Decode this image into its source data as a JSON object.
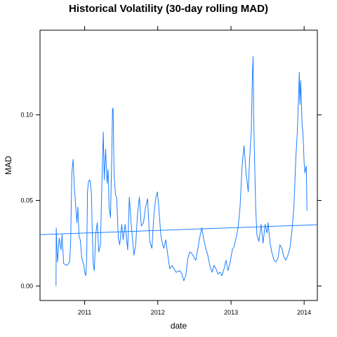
{
  "chart_data": {
    "type": "line",
    "title": "Historical Volatility (30-day rolling MAD)",
    "xlabel": "date",
    "ylabel": "MAD",
    "xlim": [
      "2010-05-23",
      "2014-03-08"
    ],
    "ylim": [
      -0.0085,
      0.1495
    ],
    "x_ticks": [
      "2011",
      "2012",
      "2013",
      "2014"
    ],
    "y_ticks": [
      "0.00",
      "0.05",
      "0.10"
    ],
    "grid": false,
    "line_color": "#1e7fff",
    "series": [
      {
        "values": [
          [
            "2010-08-11",
            0.0
          ],
          [
            "2010-08-12",
            0.034
          ],
          [
            "2010-08-18",
            0.014
          ],
          [
            "2010-08-27",
            0.028
          ],
          [
            "2010-09-05",
            0.021
          ],
          [
            "2010-09-10",
            0.03
          ],
          [
            "2010-09-18",
            0.013
          ],
          [
            "2010-10-05",
            0.012
          ],
          [
            "2010-10-18",
            0.014
          ],
          [
            "2010-10-23",
            0.025
          ],
          [
            "2010-10-29",
            0.066
          ],
          [
            "2010-11-04",
            0.074
          ],
          [
            "2010-11-10",
            0.058
          ],
          [
            "2010-11-16",
            0.049
          ],
          [
            "2010-11-23",
            0.037
          ],
          [
            "2010-11-28",
            0.046
          ],
          [
            "2010-12-04",
            0.029
          ],
          [
            "2010-12-10",
            0.027
          ],
          [
            "2010-12-18",
            0.016
          ],
          [
            "2010-12-28",
            0.012
          ],
          [
            "2011-01-01",
            0.008
          ],
          [
            "2011-01-07",
            0.006
          ],
          [
            "2011-01-11",
            0.016
          ],
          [
            "2011-01-15",
            0.055
          ],
          [
            "2011-01-20",
            0.061
          ],
          [
            "2011-01-27",
            0.062
          ],
          [
            "2011-02-04",
            0.054
          ],
          [
            "2011-02-08",
            0.032
          ],
          [
            "2011-02-13",
            0.012
          ],
          [
            "2011-02-18",
            0.009
          ],
          [
            "2011-02-25",
            0.03
          ],
          [
            "2011-03-05",
            0.037
          ],
          [
            "2011-03-12",
            0.02
          ],
          [
            "2011-03-21",
            0.024
          ],
          [
            "2011-03-28",
            0.06
          ],
          [
            "2011-04-04",
            0.09
          ],
          [
            "2011-04-09",
            0.062
          ],
          [
            "2011-04-16",
            0.08
          ],
          [
            "2011-04-23",
            0.06
          ],
          [
            "2011-04-28",
            0.068
          ],
          [
            "2011-05-03",
            0.046
          ],
          [
            "2011-05-10",
            0.04
          ],
          [
            "2011-05-16",
            0.074
          ],
          [
            "2011-05-20",
            0.103
          ],
          [
            "2011-05-23",
            0.104
          ],
          [
            "2011-05-28",
            0.065
          ],
          [
            "2011-06-04",
            0.053
          ],
          [
            "2011-06-10",
            0.052
          ],
          [
            "2011-06-18",
            0.028
          ],
          [
            "2011-06-25",
            0.024
          ],
          [
            "2011-07-05",
            0.036
          ],
          [
            "2011-07-12",
            0.027
          ],
          [
            "2011-07-22",
            0.036
          ],
          [
            "2011-08-04",
            0.021
          ],
          [
            "2011-08-12",
            0.052
          ],
          [
            "2011-08-22",
            0.035
          ],
          [
            "2011-09-04",
            0.018
          ],
          [
            "2011-09-13",
            0.024
          ],
          [
            "2011-09-22",
            0.042
          ],
          [
            "2011-10-01",
            0.052
          ],
          [
            "2011-10-11",
            0.035
          ],
          [
            "2011-10-22",
            0.037
          ],
          [
            "2011-11-01",
            0.046
          ],
          [
            "2011-11-11",
            0.051
          ],
          [
            "2011-11-22",
            0.026
          ],
          [
            "2011-12-03",
            0.022
          ],
          [
            "2011-12-13",
            0.042
          ],
          [
            "2011-12-23",
            0.052
          ],
          [
            "2011-12-30",
            0.055
          ],
          [
            "2012-01-05",
            0.048
          ],
          [
            "2012-01-16",
            0.03
          ],
          [
            "2012-01-22",
            0.026
          ],
          [
            "2012-01-31",
            0.022
          ],
          [
            "2012-02-10",
            0.027
          ],
          [
            "2012-02-20",
            0.018
          ],
          [
            "2012-03-01",
            0.01
          ],
          [
            "2012-03-12",
            0.012
          ],
          [
            "2012-03-22",
            0.01
          ],
          [
            "2012-04-02",
            0.008
          ],
          [
            "2012-04-19",
            0.009
          ],
          [
            "2012-05-01",
            0.007
          ],
          [
            "2012-05-10",
            0.003
          ],
          [
            "2012-05-20",
            0.006
          ],
          [
            "2012-05-30",
            0.016
          ],
          [
            "2012-06-09",
            0.02
          ],
          [
            "2012-06-19",
            0.019
          ],
          [
            "2012-06-29",
            0.017
          ],
          [
            "2012-07-09",
            0.015
          ],
          [
            "2012-07-18",
            0.021
          ],
          [
            "2012-07-28",
            0.028
          ],
          [
            "2012-08-08",
            0.034
          ],
          [
            "2012-08-18",
            0.027
          ],
          [
            "2012-08-28",
            0.022
          ],
          [
            "2012-09-07",
            0.018
          ],
          [
            "2012-09-17",
            0.012
          ],
          [
            "2012-09-28",
            0.008
          ],
          [
            "2012-10-08",
            0.012
          ],
          [
            "2012-10-18",
            0.01
          ],
          [
            "2012-10-28",
            0.007
          ],
          [
            "2012-11-07",
            0.008
          ],
          [
            "2012-11-17",
            0.006
          ],
          [
            "2012-11-27",
            0.01
          ],
          [
            "2012-12-07",
            0.015
          ],
          [
            "2012-12-17",
            0.009
          ],
          [
            "2012-12-28",
            0.014
          ],
          [
            "2013-01-07",
            0.021
          ],
          [
            "2013-01-16",
            0.023
          ],
          [
            "2013-01-26",
            0.028
          ],
          [
            "2013-02-05",
            0.034
          ],
          [
            "2013-02-15",
            0.046
          ],
          [
            "2013-02-25",
            0.07
          ],
          [
            "2013-03-07",
            0.082
          ],
          [
            "2013-03-17",
            0.066
          ],
          [
            "2013-03-28",
            0.055
          ],
          [
            "2013-04-04",
            0.075
          ],
          [
            "2013-04-12",
            0.09
          ],
          [
            "2013-04-18",
            0.125
          ],
          [
            "2013-04-21",
            0.134
          ],
          [
            "2013-04-24",
            0.1
          ],
          [
            "2013-04-29",
            0.072
          ],
          [
            "2013-05-04",
            0.046
          ],
          [
            "2013-05-10",
            0.03
          ],
          [
            "2013-05-20",
            0.026
          ],
          [
            "2013-05-31",
            0.036
          ],
          [
            "2013-06-10",
            0.025
          ],
          [
            "2013-06-20",
            0.036
          ],
          [
            "2013-06-30",
            0.031
          ],
          [
            "2013-07-05",
            0.037
          ],
          [
            "2013-07-15",
            0.025
          ],
          [
            "2013-07-25",
            0.019
          ],
          [
            "2013-08-04",
            0.015
          ],
          [
            "2013-08-13",
            0.014
          ],
          [
            "2013-08-23",
            0.016
          ],
          [
            "2013-09-02",
            0.024
          ],
          [
            "2013-09-12",
            0.022
          ],
          [
            "2013-09-22",
            0.017
          ],
          [
            "2013-10-02",
            0.015
          ],
          [
            "2013-10-12",
            0.018
          ],
          [
            "2013-10-22",
            0.022
          ],
          [
            "2013-11-01",
            0.032
          ],
          [
            "2013-11-11",
            0.046
          ],
          [
            "2013-11-21",
            0.076
          ],
          [
            "2013-11-28",
            0.09
          ],
          [
            "2013-12-04",
            0.11
          ],
          [
            "2013-12-08",
            0.125
          ],
          [
            "2013-12-11",
            0.106
          ],
          [
            "2013-12-15",
            0.12
          ],
          [
            "2013-12-22",
            0.094
          ],
          [
            "2013-12-26",
            0.09
          ],
          [
            "2014-01-01",
            0.072
          ],
          [
            "2014-01-05",
            0.066
          ],
          [
            "2014-01-09",
            0.069
          ],
          [
            "2014-01-12",
            0.07
          ],
          [
            "2014-01-15",
            0.044
          ]
        ]
      },
      {
        "values": [
          [
            "2010-05-23",
            0.03
          ],
          [
            "2014-03-08",
            0.0358
          ]
        ]
      }
    ]
  }
}
